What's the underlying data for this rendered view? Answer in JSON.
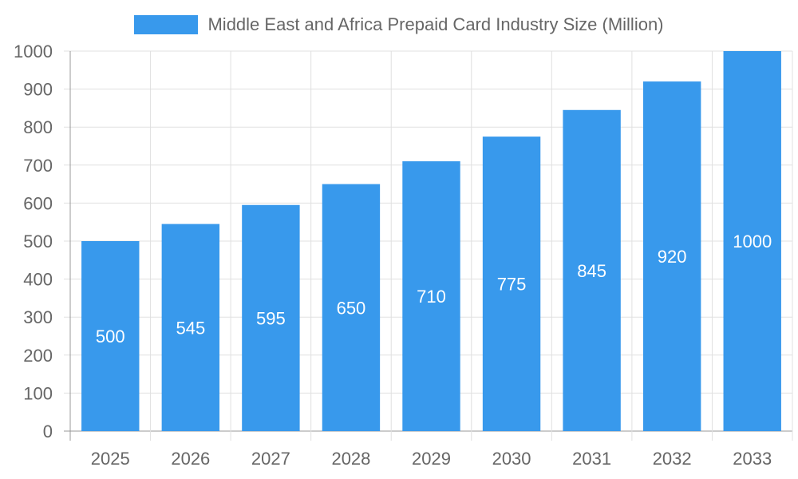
{
  "chart_data": {
    "type": "bar",
    "categories": [
      "2025",
      "2026",
      "2027",
      "2028",
      "2029",
      "2030",
      "2031",
      "2032",
      "2033"
    ],
    "series": [
      {
        "name": "Middle East and Africa Prepaid Card Industry Size (Million)",
        "values": [
          500,
          545,
          595,
          650,
          710,
          775,
          845,
          920,
          1000
        ]
      }
    ],
    "ylim": [
      0,
      1000
    ],
    "yticks": [
      0,
      100,
      200,
      300,
      400,
      500,
      600,
      700,
      800,
      900,
      1000
    ],
    "grid": true,
    "legend": "top",
    "data_labels": true,
    "colors": {
      "bar": "#3899ec",
      "grid": "#e0e0e0",
      "axis": "#999999",
      "text": "#666666"
    }
  }
}
